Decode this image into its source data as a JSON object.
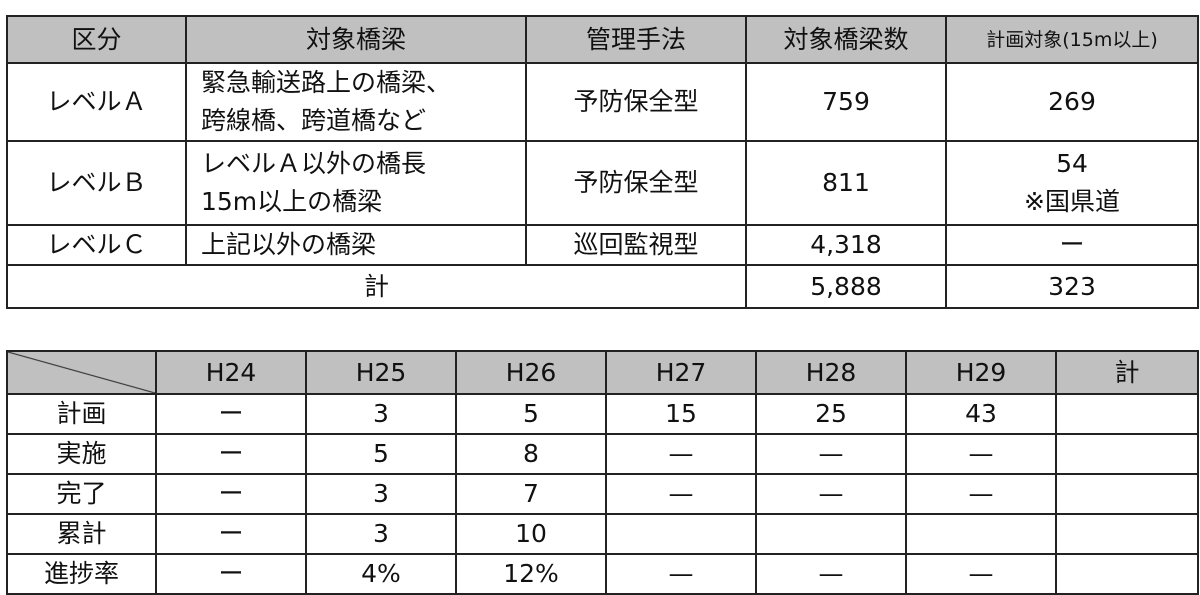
{
  "table1": {
    "headers": [
      "区分",
      "対象橋梁",
      "管理手法",
      "対象橋梁数",
      "計画対象(15m以上)"
    ],
    "rows": [
      {
        "level": "レベルＡ",
        "target_line1": "緊急輸送路上の橋梁、",
        "target_line2": "跨線橋、跨道橋など",
        "method": "予防保全型",
        "count": "759",
        "plan": "269",
        "plan_note": ""
      },
      {
        "level": "レベルＢ",
        "target_line1": "レベルＡ以外の橋長",
        "target_line2": "15m以上の橋梁",
        "method": "予防保全型",
        "count": "811",
        "plan": "54",
        "plan_note": "※国県道"
      },
      {
        "level": "レベルＣ",
        "target_line1": "上記以外の橋梁",
        "target_line2": "",
        "method": "巡回監視型",
        "count": "4,318",
        "plan": "ー",
        "plan_note": ""
      }
    ],
    "total": {
      "label": "計",
      "count": "5,888",
      "plan": "323"
    }
  },
  "table2": {
    "headers": [
      "H24",
      "H25",
      "H26",
      "H27",
      "H28",
      "H29",
      "計"
    ],
    "rows": [
      {
        "label": "計画",
        "values": [
          "ー",
          "3",
          "5",
          "15",
          "25",
          "43",
          ""
        ]
      },
      {
        "label": "実施",
        "values": [
          "ー",
          "5",
          "8",
          "—",
          "—",
          "—",
          ""
        ]
      },
      {
        "label": "完了",
        "values": [
          "ー",
          "3",
          "7",
          "—",
          "—",
          "—",
          ""
        ]
      },
      {
        "label": "累計",
        "values": [
          "ー",
          "3",
          "10",
          "",
          "",
          "",
          ""
        ]
      },
      {
        "label": "進捗率",
        "values": [
          "ー",
          "4%",
          "12%",
          "—",
          "—",
          "—",
          ""
        ]
      }
    ]
  }
}
